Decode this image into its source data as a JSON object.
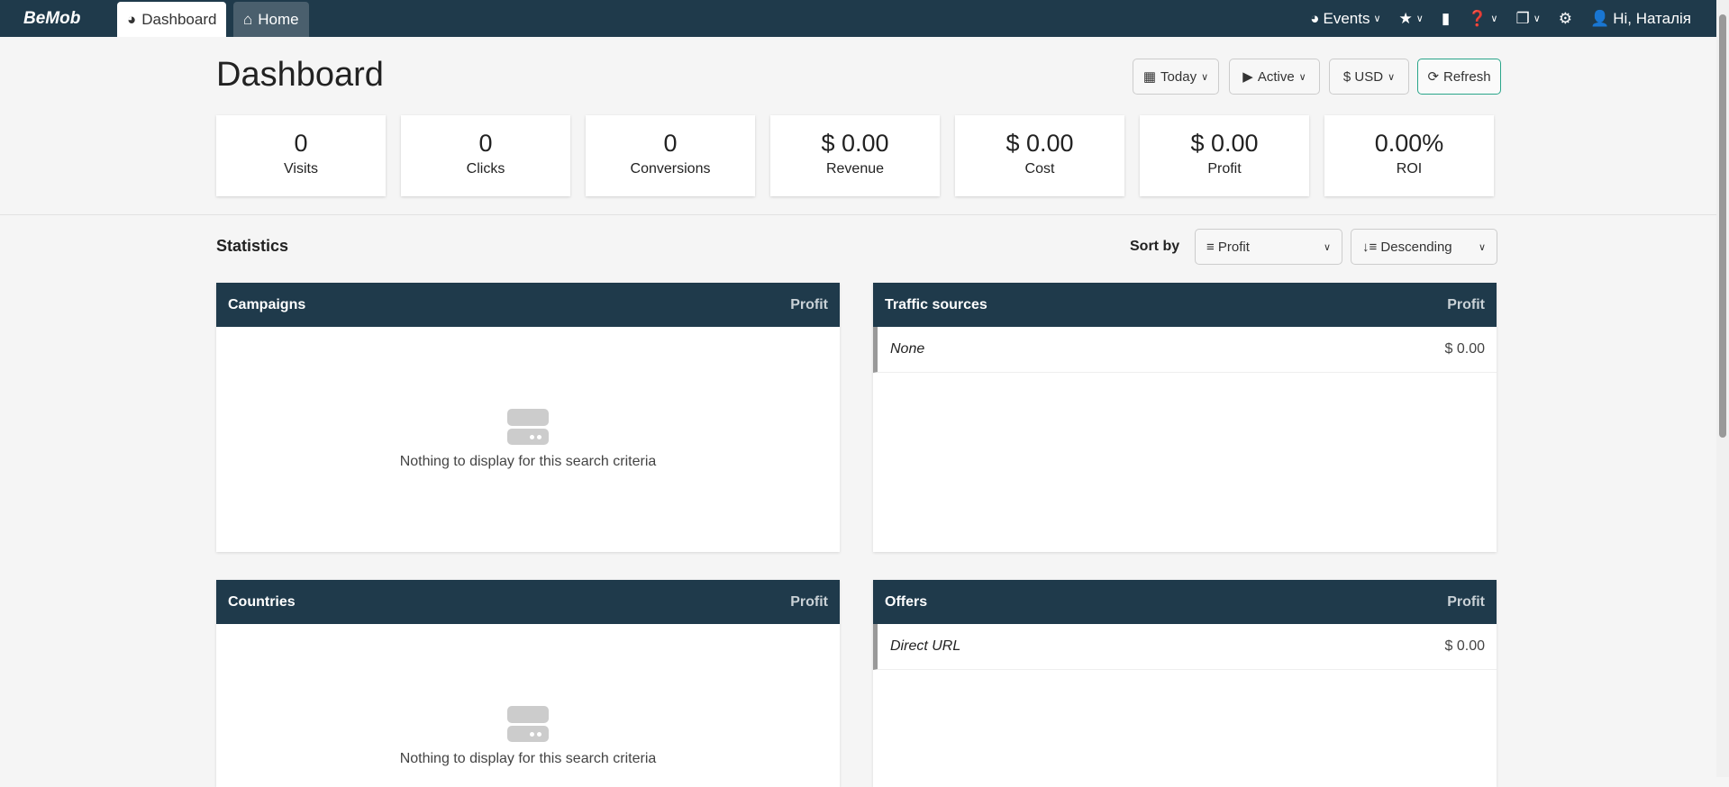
{
  "nav": {
    "logo": "BeMob",
    "tabs": [
      {
        "label": "Dashboard",
        "icon": "gauge-icon"
      },
      {
        "label": "Home",
        "icon": "home-icon"
      }
    ],
    "events": "Events",
    "user": "Hi, Наталія"
  },
  "header": {
    "title": "Dashboard",
    "date": "Today",
    "status": "Active",
    "currency": "$ USD",
    "refresh": "Refresh"
  },
  "stats": [
    {
      "value": "0",
      "label": "Visits"
    },
    {
      "value": "0",
      "label": "Clicks"
    },
    {
      "value": "0",
      "label": "Conversions"
    },
    {
      "value": "$ 0.00",
      "label": "Revenue"
    },
    {
      "value": "$ 0.00",
      "label": "Cost"
    },
    {
      "value": "$ 0.00",
      "label": "Profit"
    },
    {
      "value": "0.00%",
      "label": "ROI"
    }
  ],
  "statistics": {
    "title": "Statistics",
    "sort_label": "Sort by",
    "sort_field": "Profit",
    "sort_order": "Descending"
  },
  "panels": [
    {
      "title": "Campaigns",
      "col": "Profit",
      "empty": "Nothing to display for this search criteria"
    },
    {
      "title": "Traffic sources",
      "col": "Profit",
      "rows": [
        {
          "name": "None",
          "value": "$ 0.00"
        }
      ]
    },
    {
      "title": "Countries",
      "col": "Profit",
      "empty": "Nothing to display for this search criteria"
    },
    {
      "title": "Offers",
      "col": "Profit",
      "rows": [
        {
          "name": "Direct URL",
          "value": "$ 0.00"
        }
      ]
    }
  ],
  "colors": {
    "navbar": "#1f3a4b",
    "refresh_border": "#2aa58a"
  }
}
